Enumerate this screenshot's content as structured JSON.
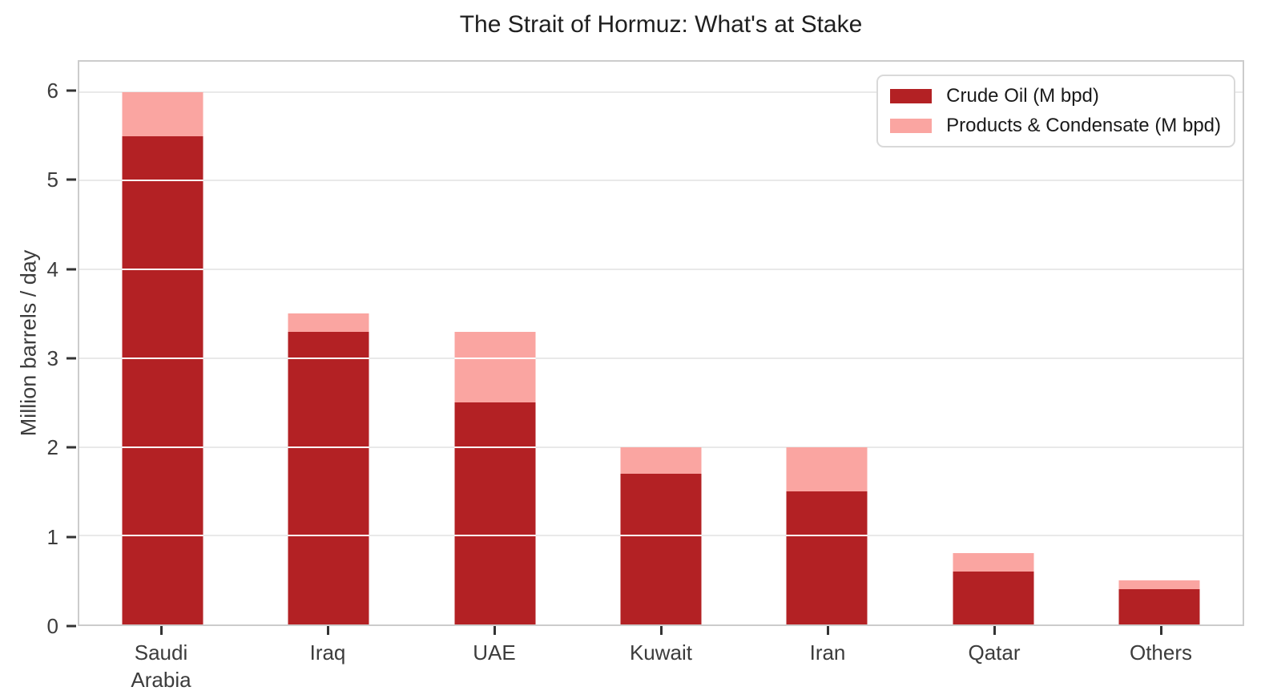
{
  "chart_data": {
    "type": "bar",
    "stacked": true,
    "title": "The Strait of Hormuz: What's at Stake",
    "xlabel": "",
    "ylabel": "Million barrels / day",
    "categories": [
      "Saudi\nArabia",
      "Iraq",
      "UAE",
      "Kuwait",
      "Iran",
      "Qatar",
      "Others"
    ],
    "series": [
      {
        "name": "Crude Oil (M bpd)",
        "color": "#b32124",
        "values": [
          5.5,
          3.3,
          2.5,
          1.7,
          1.5,
          0.6,
          0.4
        ]
      },
      {
        "name": "Products & Condensate (M bpd)",
        "color": "#faa5a1",
        "values": [
          0.5,
          0.2,
          0.8,
          0.3,
          0.5,
          0.2,
          0.1
        ]
      }
    ],
    "totals": [
      6.0,
      3.5,
      3.3,
      2.0,
      2.0,
      0.8,
      0.5
    ],
    "yticks": [
      0,
      1,
      2,
      3,
      4,
      5,
      6
    ],
    "ylim": [
      0,
      6.34
    ],
    "grid": true,
    "grid_overlay_on_bars": true,
    "legend_position": "upper right"
  },
  "style": {
    "background": "#ffffff",
    "grid_color": "#e9e9e9",
    "bar_grid_overlay_color": "#ffffff",
    "spine_color": "#cccccc",
    "tick_mark_color": "#333333",
    "tick_label_color": "#3c3c3c",
    "title_color": "#1f1f1f",
    "legend_border_color": "#d9d9d9"
  }
}
